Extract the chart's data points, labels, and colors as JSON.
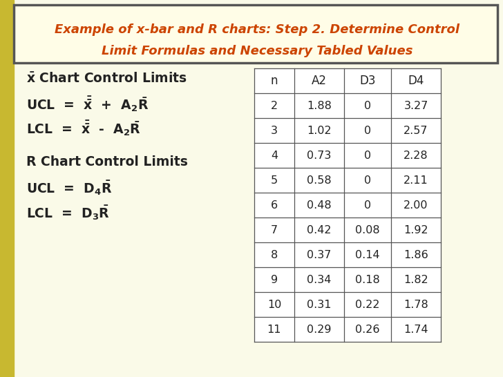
{
  "title_line1": "Example of x-bar and R charts: Step 2. Determine Control",
  "title_line2": "Limit Formulas and Necessary Tabled Values",
  "title_color": "#CC4400",
  "title_bg": "#FFFDE7",
  "title_border": "#555555",
  "bg_color": "#F0EED8",
  "main_bg": "#FAFAE8",
  "table_headers": [
    "n",
    "A2",
    "D3",
    "D4"
  ],
  "table_data_display": [
    [
      "2",
      "1.88",
      "0",
      "3.27"
    ],
    [
      "3",
      "1.02",
      "0",
      "2.57"
    ],
    [
      "4",
      "0.73",
      "0",
      "2.28"
    ],
    [
      "5",
      "0.58",
      "0",
      "2.11"
    ],
    [
      "6",
      "0.48",
      "0",
      "2.00"
    ],
    [
      "7",
      "0.42",
      "0.08",
      "1.92"
    ],
    [
      "8",
      "0.37",
      "0.14",
      "1.86"
    ],
    [
      "9",
      "0.34",
      "0.18",
      "1.82"
    ],
    [
      "10",
      "0.31",
      "0.22",
      "1.78"
    ],
    [
      "11",
      "0.29",
      "0.26",
      "1.74"
    ]
  ],
  "text_color": "#222222",
  "deco_green_light": "#C8D98A",
  "deco_green_dark": "#8AAA3A",
  "deco_yellow": "#E8D870",
  "left_bar_color": "#C8B830",
  "table_bg": "#FAFAE8",
  "table_line_color": "#555555"
}
